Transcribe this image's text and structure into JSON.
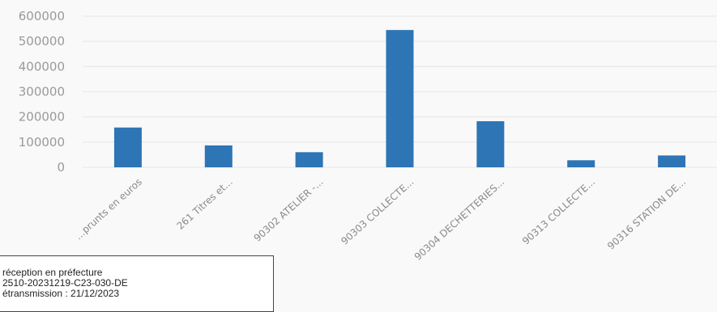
{
  "chart_data": {
    "type": "bar",
    "categories": [
      "...prunts en euros",
      "261 Titres et...",
      "90302 ATELIER -...",
      "90303 COLLECTE...",
      "90304 DECHETTERIES...",
      "90313 COLLECTE...",
      "90316 STATION DE..."
    ],
    "values": [
      158000,
      87000,
      60000,
      545000,
      183000,
      28000,
      47000
    ],
    "yticks": [
      "600000",
      "500000",
      "400000",
      "300000",
      "200000",
      "100000",
      "0"
    ],
    "ylim": [
      0,
      600000
    ],
    "color": "#2e75b6",
    "grid": true,
    "legend": "none"
  },
  "stamp": {
    "line1": "réception en préfecture",
    "line2": "2510-20231219-C23-030-DE",
    "line3": "étransmission : 21/12/2023"
  }
}
